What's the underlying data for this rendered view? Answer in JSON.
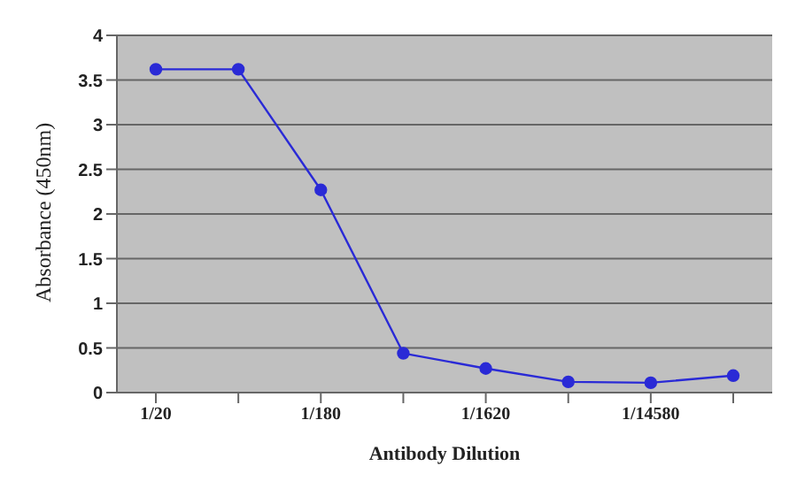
{
  "chart_data": {
    "type": "line",
    "xlabel": "Antibody Dilution",
    "ylabel": "Absorbance (450nm)",
    "categories": [
      "1/20",
      null,
      "1/180",
      null,
      "1/1620",
      null,
      "1/14580",
      null
    ],
    "series": [
      {
        "color": "#2a2ad6",
        "values": [
          3.62,
          3.62,
          2.27,
          0.44,
          0.27,
          0.12,
          0.11,
          0.19
        ]
      }
    ],
    "ylim": [
      0,
      4
    ],
    "yticks": [
      0,
      0.5,
      1,
      1.5,
      2,
      2.5,
      3,
      3.5,
      4
    ],
    "grid": "y",
    "marker": "circle",
    "legend": false
  }
}
